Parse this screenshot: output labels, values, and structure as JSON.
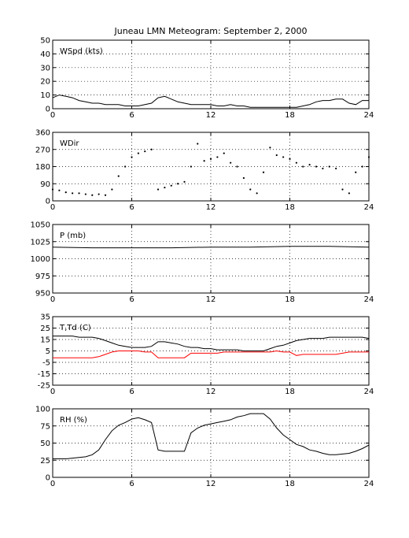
{
  "title": "Juneau LMN Meteogram: September  2, 2000",
  "chart_data": [
    {
      "id": "wspd",
      "type": "scatter",
      "label": "WSpd (kts)",
      "xlim": [
        0,
        24
      ],
      "ylim": [
        0,
        50
      ],
      "xticks": [
        0,
        6,
        12,
        18,
        24
      ],
      "yticks": [
        0,
        10,
        20,
        30,
        40,
        50
      ],
      "grid": true,
      "series": [
        {
          "mode": "line",
          "color": "#000000",
          "x": [
            0,
            0.5,
            1,
            1.5,
            2,
            2.5,
            3,
            3.5,
            4,
            4.5,
            5,
            5.5,
            6,
            6.5,
            7,
            7.5,
            8,
            8.5,
            9,
            9.5,
            10,
            10.5,
            11,
            11.5,
            12,
            12.5,
            13,
            13.5,
            14,
            14.5,
            15,
            15.5,
            16,
            16.5,
            17,
            17.5,
            18,
            18.5,
            19,
            19.5,
            20,
            20.5,
            21,
            21.5,
            22,
            22.5,
            23,
            23.5,
            24
          ],
          "y": [
            8,
            10,
            9,
            8,
            6,
            5,
            4,
            4,
            3,
            3,
            3,
            2,
            2,
            2,
            3,
            4,
            8,
            9,
            7,
            5,
            4,
            3,
            3,
            3,
            3,
            2,
            2,
            3,
            2,
            2,
            1,
            1,
            1,
            1,
            1,
            1,
            1,
            1,
            2,
            3,
            5,
            6,
            6,
            7,
            7,
            4,
            3,
            6,
            6
          ]
        }
      ]
    },
    {
      "id": "wdir",
      "type": "scatter",
      "label": "WDir",
      "xlim": [
        0,
        24
      ],
      "ylim": [
        0,
        360
      ],
      "xticks": [
        0,
        6,
        12,
        18,
        24
      ],
      "yticks": [
        0,
        90,
        180,
        270,
        360
      ],
      "grid": true,
      "series": [
        {
          "mode": "dots",
          "color": "#000000",
          "x": [
            0,
            0.5,
            1,
            1.5,
            2,
            2.5,
            3,
            3.5,
            4,
            4.5,
            5,
            5.5,
            6,
            6.5,
            7,
            7.5,
            8,
            8.5,
            9,
            9.5,
            10,
            10.5,
            11,
            11.5,
            12,
            12.5,
            13,
            13.5,
            14,
            14.5,
            15,
            15.5,
            16,
            16.5,
            17,
            17.5,
            18,
            18.5,
            19,
            19.5,
            20,
            20.5,
            21,
            21.5,
            22,
            22.5,
            23,
            23.5,
            24
          ],
          "y": [
            60,
            55,
            45,
            40,
            40,
            35,
            30,
            35,
            30,
            60,
            130,
            180,
            230,
            250,
            260,
            270,
            60,
            70,
            80,
            90,
            100,
            180,
            300,
            210,
            220,
            230,
            250,
            200,
            180,
            120,
            60,
            40,
            150,
            280,
            240,
            230,
            220,
            200,
            180,
            190,
            180,
            170,
            180,
            170,
            60,
            40,
            150,
            180,
            230
          ]
        }
      ]
    },
    {
      "id": "pres",
      "type": "line",
      "label": "P (mb)",
      "xlim": [
        0,
        24
      ],
      "ylim": [
        950,
        1050
      ],
      "xticks": [
        0,
        6,
        12,
        18,
        24
      ],
      "yticks": [
        950,
        975,
        1000,
        1025,
        1050
      ],
      "grid": true,
      "series": [
        {
          "mode": "line",
          "color": "#000000",
          "x": [
            0,
            3,
            6,
            9,
            12,
            15,
            18,
            21,
            24
          ],
          "y": [
            1017,
            1016,
            1016,
            1016,
            1017,
            1017,
            1018,
            1018,
            1017
          ]
        }
      ]
    },
    {
      "id": "temp",
      "type": "line",
      "label": "T,Td (C)",
      "xlim": [
        0,
        24
      ],
      "ylim": [
        -25,
        35
      ],
      "xticks": [
        0,
        6,
        12,
        18,
        24
      ],
      "yticks": [
        -25,
        -15,
        -5,
        5,
        15,
        25,
        35
      ],
      "grid": true,
      "series": [
        {
          "mode": "line",
          "color": "#000000",
          "x": [
            0,
            0.5,
            1,
            1.5,
            2,
            2.5,
            3,
            3.5,
            4,
            4.5,
            5,
            5.5,
            6,
            6.5,
            7,
            7.5,
            8,
            8.5,
            9,
            9.5,
            10,
            10.5,
            11,
            11.5,
            12,
            12.5,
            13,
            13.5,
            14,
            14.5,
            15,
            15.5,
            16,
            16.5,
            17,
            17.5,
            18,
            18.5,
            19,
            19.5,
            20,
            20.5,
            21,
            21.5,
            22,
            22.5,
            23,
            23.5,
            24
          ],
          "y": [
            18,
            18,
            18,
            18,
            17,
            17,
            17,
            16,
            14,
            12,
            10,
            9,
            8,
            8,
            8,
            9,
            13,
            13,
            12,
            11,
            9,
            8,
            8,
            7,
            7,
            6,
            6,
            6,
            6,
            5,
            5,
            5,
            5,
            7,
            9,
            10,
            12,
            14,
            15,
            16,
            16,
            16,
            17,
            17,
            17,
            17,
            17,
            17,
            16
          ]
        },
        {
          "mode": "line",
          "color": "#ff0000",
          "x": [
            0,
            0.5,
            1,
            1.5,
            2,
            2.5,
            3,
            3.5,
            4,
            4.5,
            5,
            5.5,
            6,
            6.5,
            7,
            7.5,
            8,
            8.5,
            9,
            9.5,
            10,
            10.5,
            11,
            11.5,
            12,
            12.5,
            13,
            13.5,
            14,
            14.5,
            15,
            15.5,
            16,
            16.5,
            17,
            17.5,
            18,
            18.5,
            19,
            19.5,
            20,
            20.5,
            21,
            21.5,
            22,
            22.5,
            23,
            23.5,
            24
          ],
          "y": [
            -1,
            -1,
            -1,
            -1,
            -1,
            -1,
            -1,
            0,
            2,
            4,
            5,
            5,
            5,
            5,
            4,
            4,
            -1,
            -1,
            -1,
            -1,
            -1,
            3,
            3,
            3,
            3,
            3,
            4,
            4,
            4,
            4,
            4,
            4,
            4,
            4,
            5,
            4,
            4,
            1,
            2,
            2,
            2,
            2,
            2,
            2,
            3,
            4,
            4,
            4,
            4
          ]
        }
      ]
    },
    {
      "id": "rh",
      "type": "line",
      "label": "RH (%)",
      "xlim": [
        0,
        24
      ],
      "ylim": [
        0,
        100
      ],
      "xticks": [
        0,
        6,
        12,
        18,
        24
      ],
      "yticks": [
        0,
        25,
        50,
        75,
        100
      ],
      "grid": true,
      "series": [
        {
          "mode": "line",
          "color": "#000000",
          "x": [
            0,
            0.5,
            1,
            1.5,
            2,
            2.5,
            3,
            3.5,
            4,
            4.5,
            5,
            5.5,
            6,
            6.5,
            7,
            7.5,
            8,
            8.5,
            9,
            9.5,
            10,
            10.5,
            11,
            11.5,
            12,
            12.5,
            13,
            13.5,
            14,
            14.5,
            15,
            15.5,
            16,
            16.5,
            17,
            17.5,
            18,
            18.5,
            19,
            19.5,
            20,
            20.5,
            21,
            21.5,
            22,
            22.5,
            23,
            23.5,
            24
          ],
          "y": [
            27,
            27,
            27,
            28,
            29,
            30,
            33,
            40,
            55,
            68,
            76,
            80,
            85,
            87,
            84,
            80,
            40,
            38,
            38,
            38,
            38,
            65,
            72,
            76,
            78,
            80,
            82,
            84,
            88,
            90,
            93,
            93,
            93,
            85,
            72,
            62,
            55,
            48,
            45,
            40,
            38,
            35,
            33,
            33,
            34,
            35,
            38,
            42,
            47
          ]
        }
      ]
    }
  ]
}
